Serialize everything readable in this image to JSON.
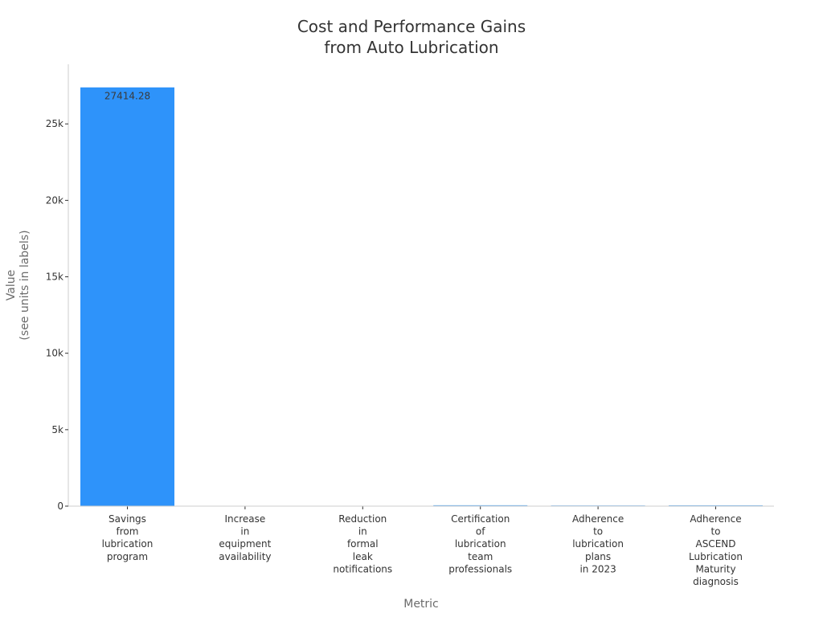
{
  "chart_data": {
    "type": "bar",
    "title": [
      "Cost and Performance Gains",
      "from Auto Lubrication"
    ],
    "xlabel": "Metric",
    "ylabel": [
      "Value",
      "(see units in labels)"
    ],
    "ylim": [
      0,
      28900
    ],
    "yticks": [
      {
        "value": 0,
        "label": "0"
      },
      {
        "value": 5000,
        "label": "5k"
      },
      {
        "value": 10000,
        "label": "10k"
      },
      {
        "value": 15000,
        "label": "15k"
      },
      {
        "value": 20000,
        "label": "20k"
      },
      {
        "value": 25000,
        "label": "25k"
      }
    ],
    "categories": [
      [
        "Savings",
        "from",
        "lubrication",
        "program"
      ],
      [
        "Increase",
        "in",
        "equipment",
        "availability"
      ],
      [
        "Reduction",
        "in",
        "formal",
        "leak",
        "notifications"
      ],
      [
        "Certification",
        "of",
        "lubrication",
        "team",
        "professionals"
      ],
      [
        "Adherence",
        "to",
        "lubrication",
        "plans",
        "in 2023"
      ],
      [
        "Adherence",
        "to",
        "ASCEND",
        "Lubrication",
        "Maturity",
        "diagnosis"
      ]
    ],
    "values": [
      27414.28,
      0,
      50,
      86,
      70,
      78
    ],
    "data_labels": [
      "27414.28",
      "",
      "",
      "",
      "",
      ""
    ],
    "bar_colors": [
      "#2e93fa",
      "#5aaaf5",
      "#5aaaf5",
      "#5aaaf5",
      "#5aaaf5",
      "#5aaaf5"
    ],
    "grid": false,
    "legend": "none"
  },
  "colors": {
    "axis": "#cccccc",
    "tick_text": "#333333",
    "axis_label": "#6b6b6b",
    "bar_edge": "#ffffff"
  }
}
